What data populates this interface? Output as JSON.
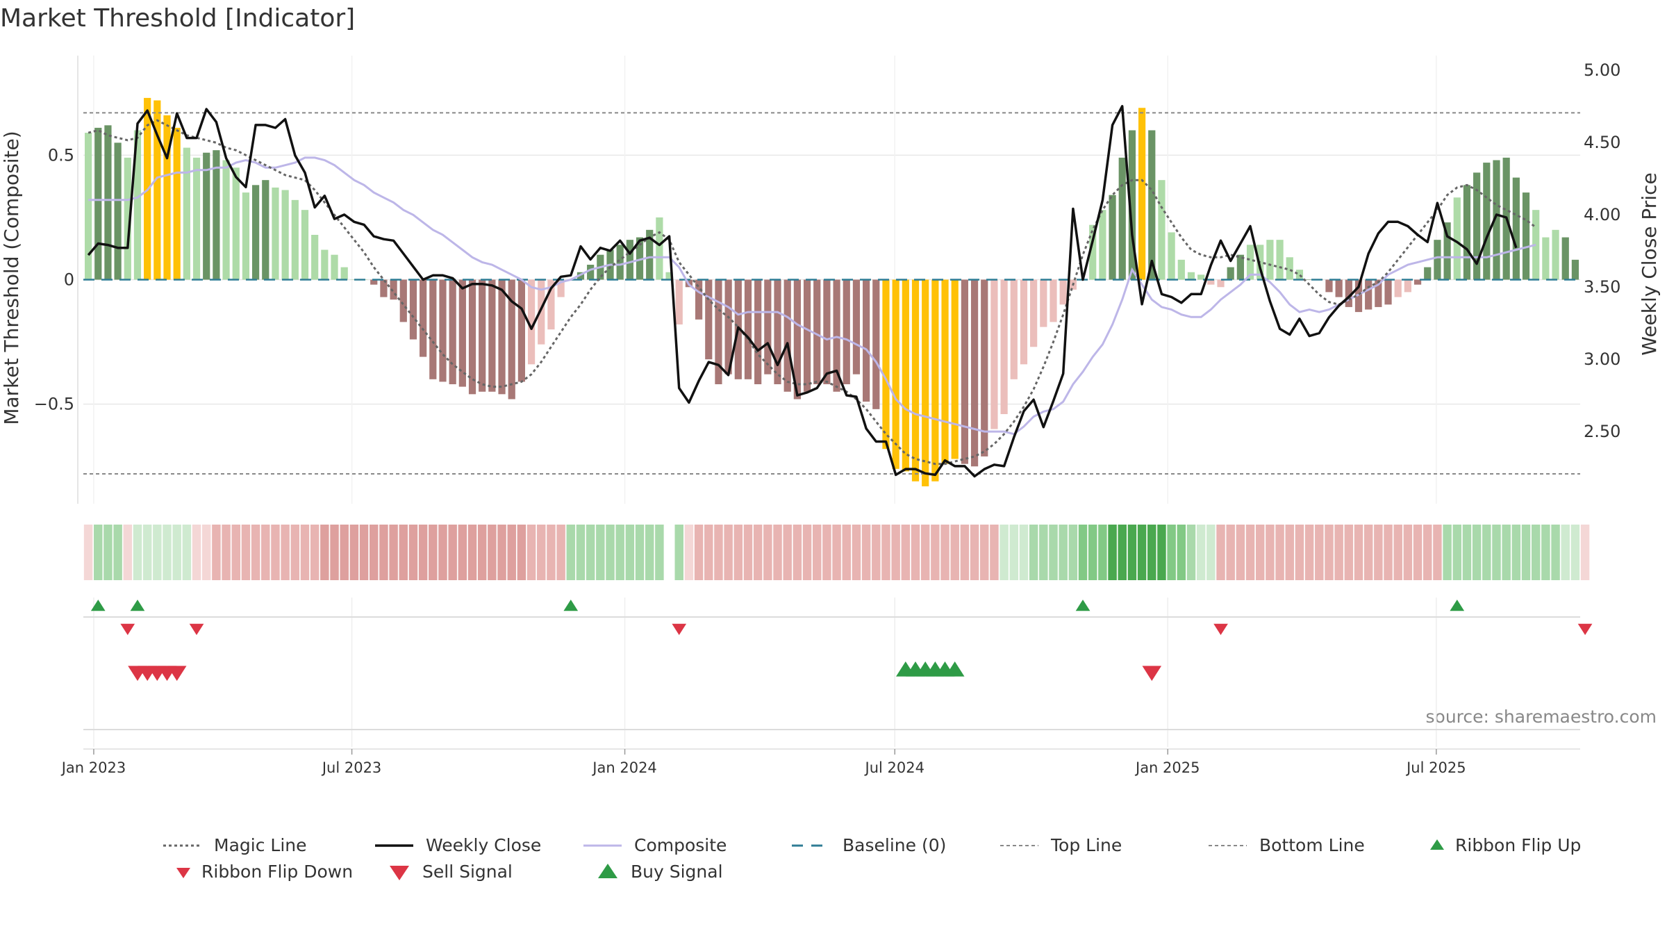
{
  "chart_data": {
    "type": "bar",
    "title": "Market Threshold [Indicator]",
    "ylabel_left": "Market Threshold (Composite)",
    "ylabel_right": "Weekly Close Price",
    "source": "source: sharemaestro.com",
    "x_start": "2023-01-01",
    "x_end": "2025-10-06",
    "x_ticks": [
      {
        "date": "2023-01-08",
        "label": "Jan 2023"
      },
      {
        "date": "2023-07-01",
        "label": "Jul 2023"
      },
      {
        "date": "2024-01-01",
        "label": "Jan 2024"
      },
      {
        "date": "2024-07-01",
        "label": "Jul 2024"
      },
      {
        "date": "2025-01-01",
        "label": "Jan 2025"
      },
      {
        "date": "2025-07-01",
        "label": "Jul 2025"
      }
    ],
    "y_left": {
      "min": -0.9,
      "max": 0.9,
      "ticks": [
        {
          "v": 0.5,
          "label": "0.5"
        },
        {
          "v": 0,
          "label": "0"
        },
        {
          "v": -0.5,
          "label": "−0.5"
        }
      ]
    },
    "y_right": {
      "min": 2.0,
      "max": 5.1,
      "ticks": [
        {
          "v": 5.0,
          "label": "5.00"
        },
        {
          "v": 4.5,
          "label": "4.50"
        },
        {
          "v": 4.0,
          "label": "4.00"
        },
        {
          "v": 3.5,
          "label": "3.50"
        },
        {
          "v": 3.0,
          "label": "3.00"
        },
        {
          "v": 2.5,
          "label": "2.50"
        }
      ]
    },
    "top_line": 0.67,
    "bottom_line": -0.78,
    "bars": [
      0.59,
      0.61,
      0.62,
      0.55,
      0.49,
      0.6,
      0.73,
      0.72,
      0.66,
      0.61,
      0.53,
      0.49,
      0.51,
      0.52,
      0.48,
      0.45,
      0.35,
      0.38,
      0.4,
      0.37,
      0.36,
      0.32,
      0.28,
      0.18,
      0.12,
      0.1,
      0.05,
      0.0,
      0.0,
      -0.02,
      -0.07,
      -0.08,
      -0.17,
      -0.24,
      -0.31,
      -0.4,
      -0.41,
      -0.42,
      -0.43,
      -0.46,
      -0.45,
      -0.45,
      -0.46,
      -0.48,
      -0.41,
      -0.34,
      -0.26,
      -0.2,
      -0.07,
      0.0,
      0.03,
      0.06,
      0.1,
      0.12,
      0.14,
      0.16,
      0.17,
      0.2,
      0.25,
      0.03,
      -0.18,
      -0.03,
      -0.16,
      -0.32,
      -0.42,
      -0.38,
      -0.4,
      -0.4,
      -0.42,
      -0.38,
      -0.42,
      -0.45,
      -0.48,
      -0.45,
      -0.42,
      -0.42,
      -0.45,
      -0.42,
      -0.38,
      -0.49,
      -0.52,
      -0.68,
      -0.76,
      -0.77,
      -0.81,
      -0.83,
      -0.81,
      -0.74,
      -0.72,
      -0.74,
      -0.75,
      -0.71,
      -0.6,
      -0.54,
      -0.4,
      -0.34,
      -0.27,
      -0.19,
      -0.17,
      -0.1,
      -0.04,
      0.0,
      0.22,
      0.28,
      0.34,
      0.49,
      0.6,
      0.69,
      0.6,
      0.4,
      0.19,
      0.08,
      0.03,
      0.02,
      -0.02,
      -0.03,
      0.05,
      0.1,
      0.14,
      0.14,
      0.16,
      0.16,
      0.09,
      0.04,
      0.0,
      0.0,
      -0.05,
      -0.07,
      -0.11,
      -0.13,
      -0.12,
      -0.11,
      -0.1,
      -0.07,
      -0.05,
      -0.02,
      0.05,
      0.16,
      0.23,
      0.33,
      0.38,
      0.43,
      0.47,
      0.48,
      0.49,
      0.41,
      0.35,
      0.28,
      0.17,
      0.2,
      0.17,
      0.08
    ],
    "bar_colors": {
      "pos_strong": "#6a9465",
      "pos_light": "#aedba8",
      "neg_strong": "#a87876",
      "neg_light": "#ebbebb",
      "extreme": "#ffc107"
    },
    "bar_strong_ranges": [
      [
        1,
        3
      ],
      [
        12,
        13
      ],
      [
        17,
        18
      ],
      [
        29,
        44
      ],
      [
        50,
        57
      ],
      [
        61,
        82
      ],
      [
        86,
        91
      ],
      [
        104,
        108
      ],
      [
        116,
        117
      ],
      [
        124,
        132
      ],
      [
        135,
        138
      ],
      [
        140,
        146
      ],
      [
        150,
        151
      ]
    ],
    "bar_extreme_ranges": [
      [
        6,
        9
      ],
      [
        80,
        88
      ],
      [
        107,
        107
      ]
    ],
    "weekly_close": [
      3.72,
      3.8,
      3.79,
      3.77,
      3.77,
      4.63,
      4.72,
      4.55,
      4.39,
      4.7,
      4.53,
      4.53,
      4.73,
      4.64,
      4.39,
      4.26,
      4.19,
      4.62,
      4.62,
      4.6,
      4.66,
      4.41,
      4.29,
      4.05,
      4.13,
      3.97,
      4.0,
      3.95,
      3.93,
      3.85,
      3.83,
      3.82,
      3.73,
      3.64,
      3.55,
      3.58,
      3.58,
      3.56,
      3.49,
      3.52,
      3.52,
      3.51,
      3.48,
      3.4,
      3.35,
      3.21,
      3.35,
      3.49,
      3.57,
      3.58,
      3.78,
      3.69,
      3.77,
      3.75,
      3.82,
      3.73,
      3.82,
      3.84,
      3.79,
      3.85,
      2.8,
      2.7,
      2.85,
      2.98,
      2.96,
      2.89,
      3.22,
      3.15,
      3.06,
      3.11,
      2.96,
      3.11,
      2.75,
      2.77,
      2.8,
      2.9,
      2.92,
      2.75,
      2.74,
      2.52,
      2.43,
      2.43,
      2.2,
      2.24,
      2.24,
      2.21,
      2.2,
      2.3,
      2.26,
      2.26,
      2.19,
      2.24,
      2.27,
      2.26,
      2.46,
      2.64,
      2.72,
      2.53,
      2.71,
      2.9,
      4.04,
      3.55,
      3.82,
      4.1,
      4.62,
      4.75,
      3.86,
      3.38,
      3.68,
      3.45,
      3.43,
      3.39,
      3.45,
      3.45,
      3.65,
      3.82,
      3.68,
      3.8,
      3.92,
      3.63,
      3.4,
      3.21,
      3.17,
      3.28,
      3.16,
      3.18,
      3.29,
      3.37,
      3.43,
      3.5,
      3.73,
      3.87,
      3.95,
      3.95,
      3.92,
      3.86,
      3.81,
      4.08,
      3.85,
      3.81,
      3.76,
      3.66,
      3.84,
      4.0,
      3.98,
      3.77
    ],
    "magic_line": [
      0.59,
      0.6,
      0.58,
      0.57,
      0.56,
      0.57,
      0.62,
      0.64,
      0.62,
      0.6,
      0.58,
      0.57,
      0.56,
      0.55,
      0.53,
      0.52,
      0.5,
      0.48,
      0.46,
      0.44,
      0.42,
      0.41,
      0.4,
      0.36,
      0.31,
      0.26,
      0.21,
      0.16,
      0.11,
      0.05,
      0.0,
      -0.05,
      -0.1,
      -0.15,
      -0.2,
      -0.25,
      -0.3,
      -0.34,
      -0.37,
      -0.4,
      -0.42,
      -0.43,
      -0.43,
      -0.42,
      -0.41,
      -0.38,
      -0.33,
      -0.27,
      -0.21,
      -0.15,
      -0.1,
      -0.04,
      0.01,
      0.05,
      0.08,
      0.11,
      0.14,
      0.17,
      0.19,
      0.16,
      0.07,
      0.02,
      -0.03,
      -0.08,
      -0.12,
      -0.15,
      -0.19,
      -0.24,
      -0.3,
      -0.34,
      -0.38,
      -0.41,
      -0.42,
      -0.42,
      -0.41,
      -0.41,
      -0.43,
      -0.45,
      -0.48,
      -0.52,
      -0.57,
      -0.62,
      -0.66,
      -0.7,
      -0.72,
      -0.73,
      -0.74,
      -0.74,
      -0.73,
      -0.72,
      -0.71,
      -0.69,
      -0.66,
      -0.62,
      -0.57,
      -0.51,
      -0.44,
      -0.35,
      -0.25,
      -0.14,
      -0.02,
      0.1,
      0.2,
      0.28,
      0.34,
      0.38,
      0.4,
      0.4,
      0.36,
      0.29,
      0.23,
      0.17,
      0.12,
      0.1,
      0.09,
      0.09,
      0.1,
      0.09,
      0.08,
      0.07,
      0.06,
      0.05,
      0.04,
      0.02,
      -0.02,
      -0.06,
      -0.09,
      -0.1,
      -0.08,
      -0.06,
      -0.03,
      -0.01,
      0.03,
      0.08,
      0.13,
      0.18,
      0.23,
      0.28,
      0.34,
      0.37,
      0.38,
      0.36,
      0.33,
      0.3,
      0.28,
      0.26,
      0.24,
      0.21
    ],
    "composite": [
      0.32,
      0.32,
      0.32,
      0.32,
      0.32,
      0.33,
      0.36,
      0.41,
      0.42,
      0.43,
      0.43,
      0.44,
      0.44,
      0.45,
      0.45,
      0.47,
      0.48,
      0.47,
      0.45,
      0.45,
      0.46,
      0.47,
      0.49,
      0.49,
      0.48,
      0.46,
      0.43,
      0.4,
      0.38,
      0.35,
      0.33,
      0.31,
      0.28,
      0.26,
      0.23,
      0.2,
      0.18,
      0.15,
      0.12,
      0.09,
      0.07,
      0.06,
      0.04,
      0.02,
      0.0,
      -0.03,
      -0.04,
      -0.03,
      -0.01,
      0.0,
      0.02,
      0.04,
      0.05,
      0.06,
      0.06,
      0.07,
      0.08,
      0.09,
      0.09,
      0.09,
      0.05,
      -0.02,
      -0.05,
      -0.07,
      -0.09,
      -0.11,
      -0.14,
      -0.13,
      -0.13,
      -0.13,
      -0.13,
      -0.15,
      -0.18,
      -0.2,
      -0.22,
      -0.24,
      -0.23,
      -0.24,
      -0.26,
      -0.28,
      -0.33,
      -0.4,
      -0.48,
      -0.52,
      -0.54,
      -0.55,
      -0.56,
      -0.57,
      -0.58,
      -0.59,
      -0.6,
      -0.61,
      -0.61,
      -0.61,
      -0.62,
      -0.59,
      -0.55,
      -0.53,
      -0.52,
      -0.49,
      -0.42,
      -0.37,
      -0.31,
      -0.26,
      -0.18,
      -0.08,
      0.04,
      -0.02,
      -0.08,
      -0.11,
      -0.12,
      -0.14,
      -0.15,
      -0.15,
      -0.12,
      -0.08,
      -0.05,
      -0.02,
      0.02,
      0.02,
      -0.01,
      -0.05,
      -0.1,
      -0.13,
      -0.12,
      -0.13,
      -0.12,
      -0.1,
      -0.08,
      -0.06,
      -0.04,
      -0.02,
      0.02,
      0.04,
      0.06,
      0.07,
      0.08,
      0.09,
      0.09,
      0.09,
      0.09,
      0.09,
      0.09,
      0.1,
      0.11,
      0.12,
      0.13,
      0.14
    ],
    "ribbon": [
      "r1",
      "g2",
      "g2",
      "g2",
      "r1",
      "g1",
      "g1",
      "g1",
      "g1",
      "g1",
      "g1",
      "r1",
      "r1",
      "r2",
      "r2",
      "r2",
      "r2",
      "r2",
      "r2",
      "r2",
      "r2",
      "r2",
      "r2",
      "r2",
      "r3",
      "r3",
      "r3",
      "r3",
      "r3",
      "r3",
      "r3",
      "r3",
      "r3",
      "r3",
      "r3",
      "r3",
      "r3",
      "r3",
      "r3",
      "r3",
      "r3",
      "r3",
      "r3",
      "r3",
      "r3",
      "r2",
      "r2",
      "r2",
      "r2",
      "g2",
      "g2",
      "g2",
      "g2",
      "g2",
      "g2",
      "g2",
      "g2",
      "g2",
      "g2",
      "g2",
      "g2",
      "r1",
      "r2",
      "r2",
      "r2",
      "r2",
      "r2",
      "r2",
      "r2",
      "r2",
      "r2",
      "r2",
      "r2",
      "r2",
      "r2",
      "r2",
      "r2",
      "r2",
      "r2",
      "r2",
      "r2",
      "r2",
      "r2",
      "r2",
      "r2",
      "r2",
      "r2",
      "r2",
      "r2",
      "r2",
      "r2",
      "r2",
      "r2",
      "g1",
      "g1",
      "g1",
      "g2",
      "g2",
      "g2",
      "g2",
      "g2",
      "g3",
      "g3",
      "g3",
      "g4",
      "g4",
      "g4",
      "g4",
      "g4",
      "g4",
      "g3",
      "g3",
      "g2",
      "g1",
      "g1",
      "r2",
      "r2",
      "r2",
      "r2",
      "r2",
      "r2",
      "r2",
      "r2",
      "r2",
      "r2",
      "r2",
      "r2",
      "r2",
      "r2",
      "r2",
      "r2",
      "r2",
      "r2",
      "r2",
      "r2",
      "r2",
      "r2",
      "r2",
      "g2",
      "g2",
      "g2",
      "g2",
      "g2",
      "g2",
      "g2",
      "g2",
      "g2",
      "g2",
      "g2",
      "g2",
      "g1",
      "g1",
      "r1"
    ],
    "ribbon_colors": {
      "r1": "#f4d7d6",
      "r2": "#e8b4b2",
      "r3": "#dea09e",
      "g1": "#cfead0",
      "g2": "#a9d9ab",
      "g3": "#82c985",
      "g4": "#4aa84f"
    },
    "ribbon_gaps": [
      59
    ],
    "ribbon_flip_up": [
      1,
      5,
      49,
      101,
      139
    ],
    "ribbon_flip_down": [
      4,
      11,
      60,
      115,
      152
    ],
    "sell_signals": [
      5,
      6,
      7,
      8,
      9,
      108
    ],
    "buy_signals": [
      83,
      84,
      85,
      86,
      87,
      88
    ],
    "colors": {
      "magic_line": "#666666",
      "weekly_close": "#111111",
      "composite": "#bdb6e8",
      "baseline": "#2f7d95",
      "threshold_line": "#888888",
      "buy": "#2e9b46",
      "sell": "#dc3545",
      "grid": "#e8e8e8"
    },
    "legend": [
      {
        "key": "magic",
        "label": "Magic Line"
      },
      {
        "key": "close",
        "label": "Weekly Close"
      },
      {
        "key": "composite",
        "label": "Composite"
      },
      {
        "key": "baseline",
        "label": "Baseline (0)"
      },
      {
        "key": "top",
        "label": "Top Line"
      },
      {
        "key": "bottom",
        "label": "Bottom Line"
      },
      {
        "key": "flipup",
        "label": "Ribbon Flip Up"
      },
      {
        "key": "flipdown",
        "label": "Ribbon Flip Down"
      },
      {
        "key": "sell",
        "label": "Sell Signal"
      },
      {
        "key": "buy",
        "label": "Buy Signal"
      }
    ]
  }
}
